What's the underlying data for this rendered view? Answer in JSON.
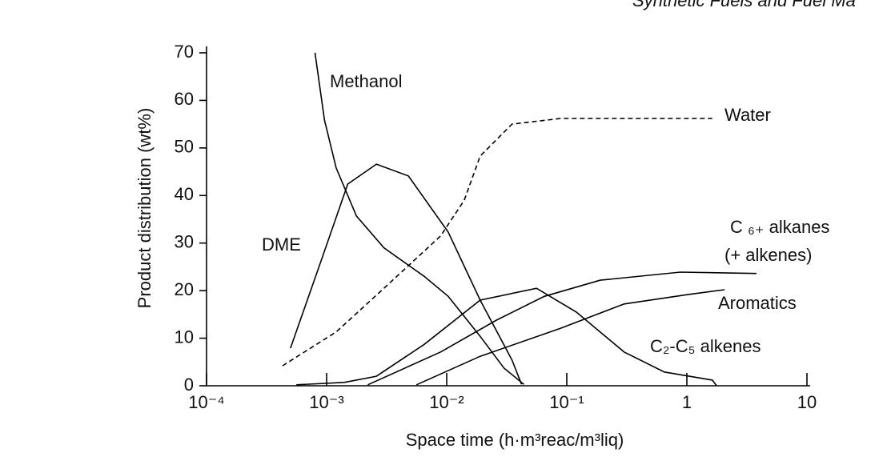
{
  "header": "Synthetic Fuels and Fuel Ma",
  "chart_data": {
    "type": "line",
    "y_label": "Product distribution (wt%)",
    "x_label": "Space time (h·m³reac/m³liq)",
    "x_scale": "log",
    "xlim": [
      0.0001,
      10
    ],
    "xticks": [
      {
        "value": 0.0001,
        "label": "10⁻⁴"
      },
      {
        "value": 0.001,
        "label": "10⁻³"
      },
      {
        "value": 0.01,
        "label": "10⁻²"
      },
      {
        "value": 0.1,
        "label": "10⁻¹"
      },
      1,
      10
    ],
    "ylim": [
      0,
      70
    ],
    "yticks": [
      0,
      10,
      20,
      30,
      40,
      50,
      60,
      70
    ],
    "grid": false,
    "series": [
      {
        "name": "Methanol",
        "color": "#000000",
        "dash": false,
        "x": [
          0.0008,
          0.00096,
          0.0012,
          0.00177,
          0.003,
          0.0065,
          0.0103,
          0.019,
          0.03,
          0.044
        ],
        "values": [
          70,
          55.9,
          45.8,
          35.7,
          29,
          23,
          18.8,
          10.4,
          3.7,
          0.3
        ]
      },
      {
        "name": "DME",
        "color": "#000000",
        "dash": false,
        "x": [
          0.0005,
          0.00088,
          0.0015,
          0.0026,
          0.0048,
          0.0103,
          0.019,
          0.035,
          0.042
        ],
        "values": [
          7.9,
          25.6,
          42.4,
          46.6,
          44.1,
          32.3,
          18,
          5.4,
          0.3
        ]
      },
      {
        "name": "Water",
        "color": "#000000",
        "dash": true,
        "x": [
          0.00043,
          0.0012,
          0.003,
          0.0089,
          0.014,
          0.019,
          0.035,
          0.089,
          1.63
        ],
        "values": [
          4.2,
          11.3,
          20.5,
          31.5,
          39,
          48.3,
          55,
          56.2,
          56.2
        ]
      },
      {
        "name": "C₂-C₅ alkenes",
        "color": "#000000",
        "dash": false,
        "x": [
          0.00056,
          0.0014,
          0.0026,
          0.0065,
          0.019,
          0.056,
          0.12,
          0.3,
          0.65,
          1.63,
          1.77
        ],
        "values": [
          0.2,
          0.7,
          2,
          8.7,
          18,
          20.5,
          15.5,
          7.1,
          2.9,
          1.2,
          0
        ]
      },
      {
        "name": "C ₆₊ alkanes",
        "color": "#000000",
        "dash": false,
        "x": [
          0.0022,
          0.0089,
          0.026,
          0.065,
          0.19,
          0.885,
          3.8
        ],
        "values": [
          0.2,
          7.1,
          13.8,
          18.8,
          22.2,
          23.9,
          23.6
        ]
      },
      {
        "name": "Aromatics",
        "color": "#000000",
        "dash": false,
        "x": [
          0.0056,
          0.019,
          0.089,
          0.3,
          1.03,
          2.06
        ],
        "values": [
          0.2,
          6.2,
          12.1,
          17.2,
          19.2,
          20.2
        ]
      }
    ],
    "annotations": [
      "(+ alkenes)"
    ]
  }
}
